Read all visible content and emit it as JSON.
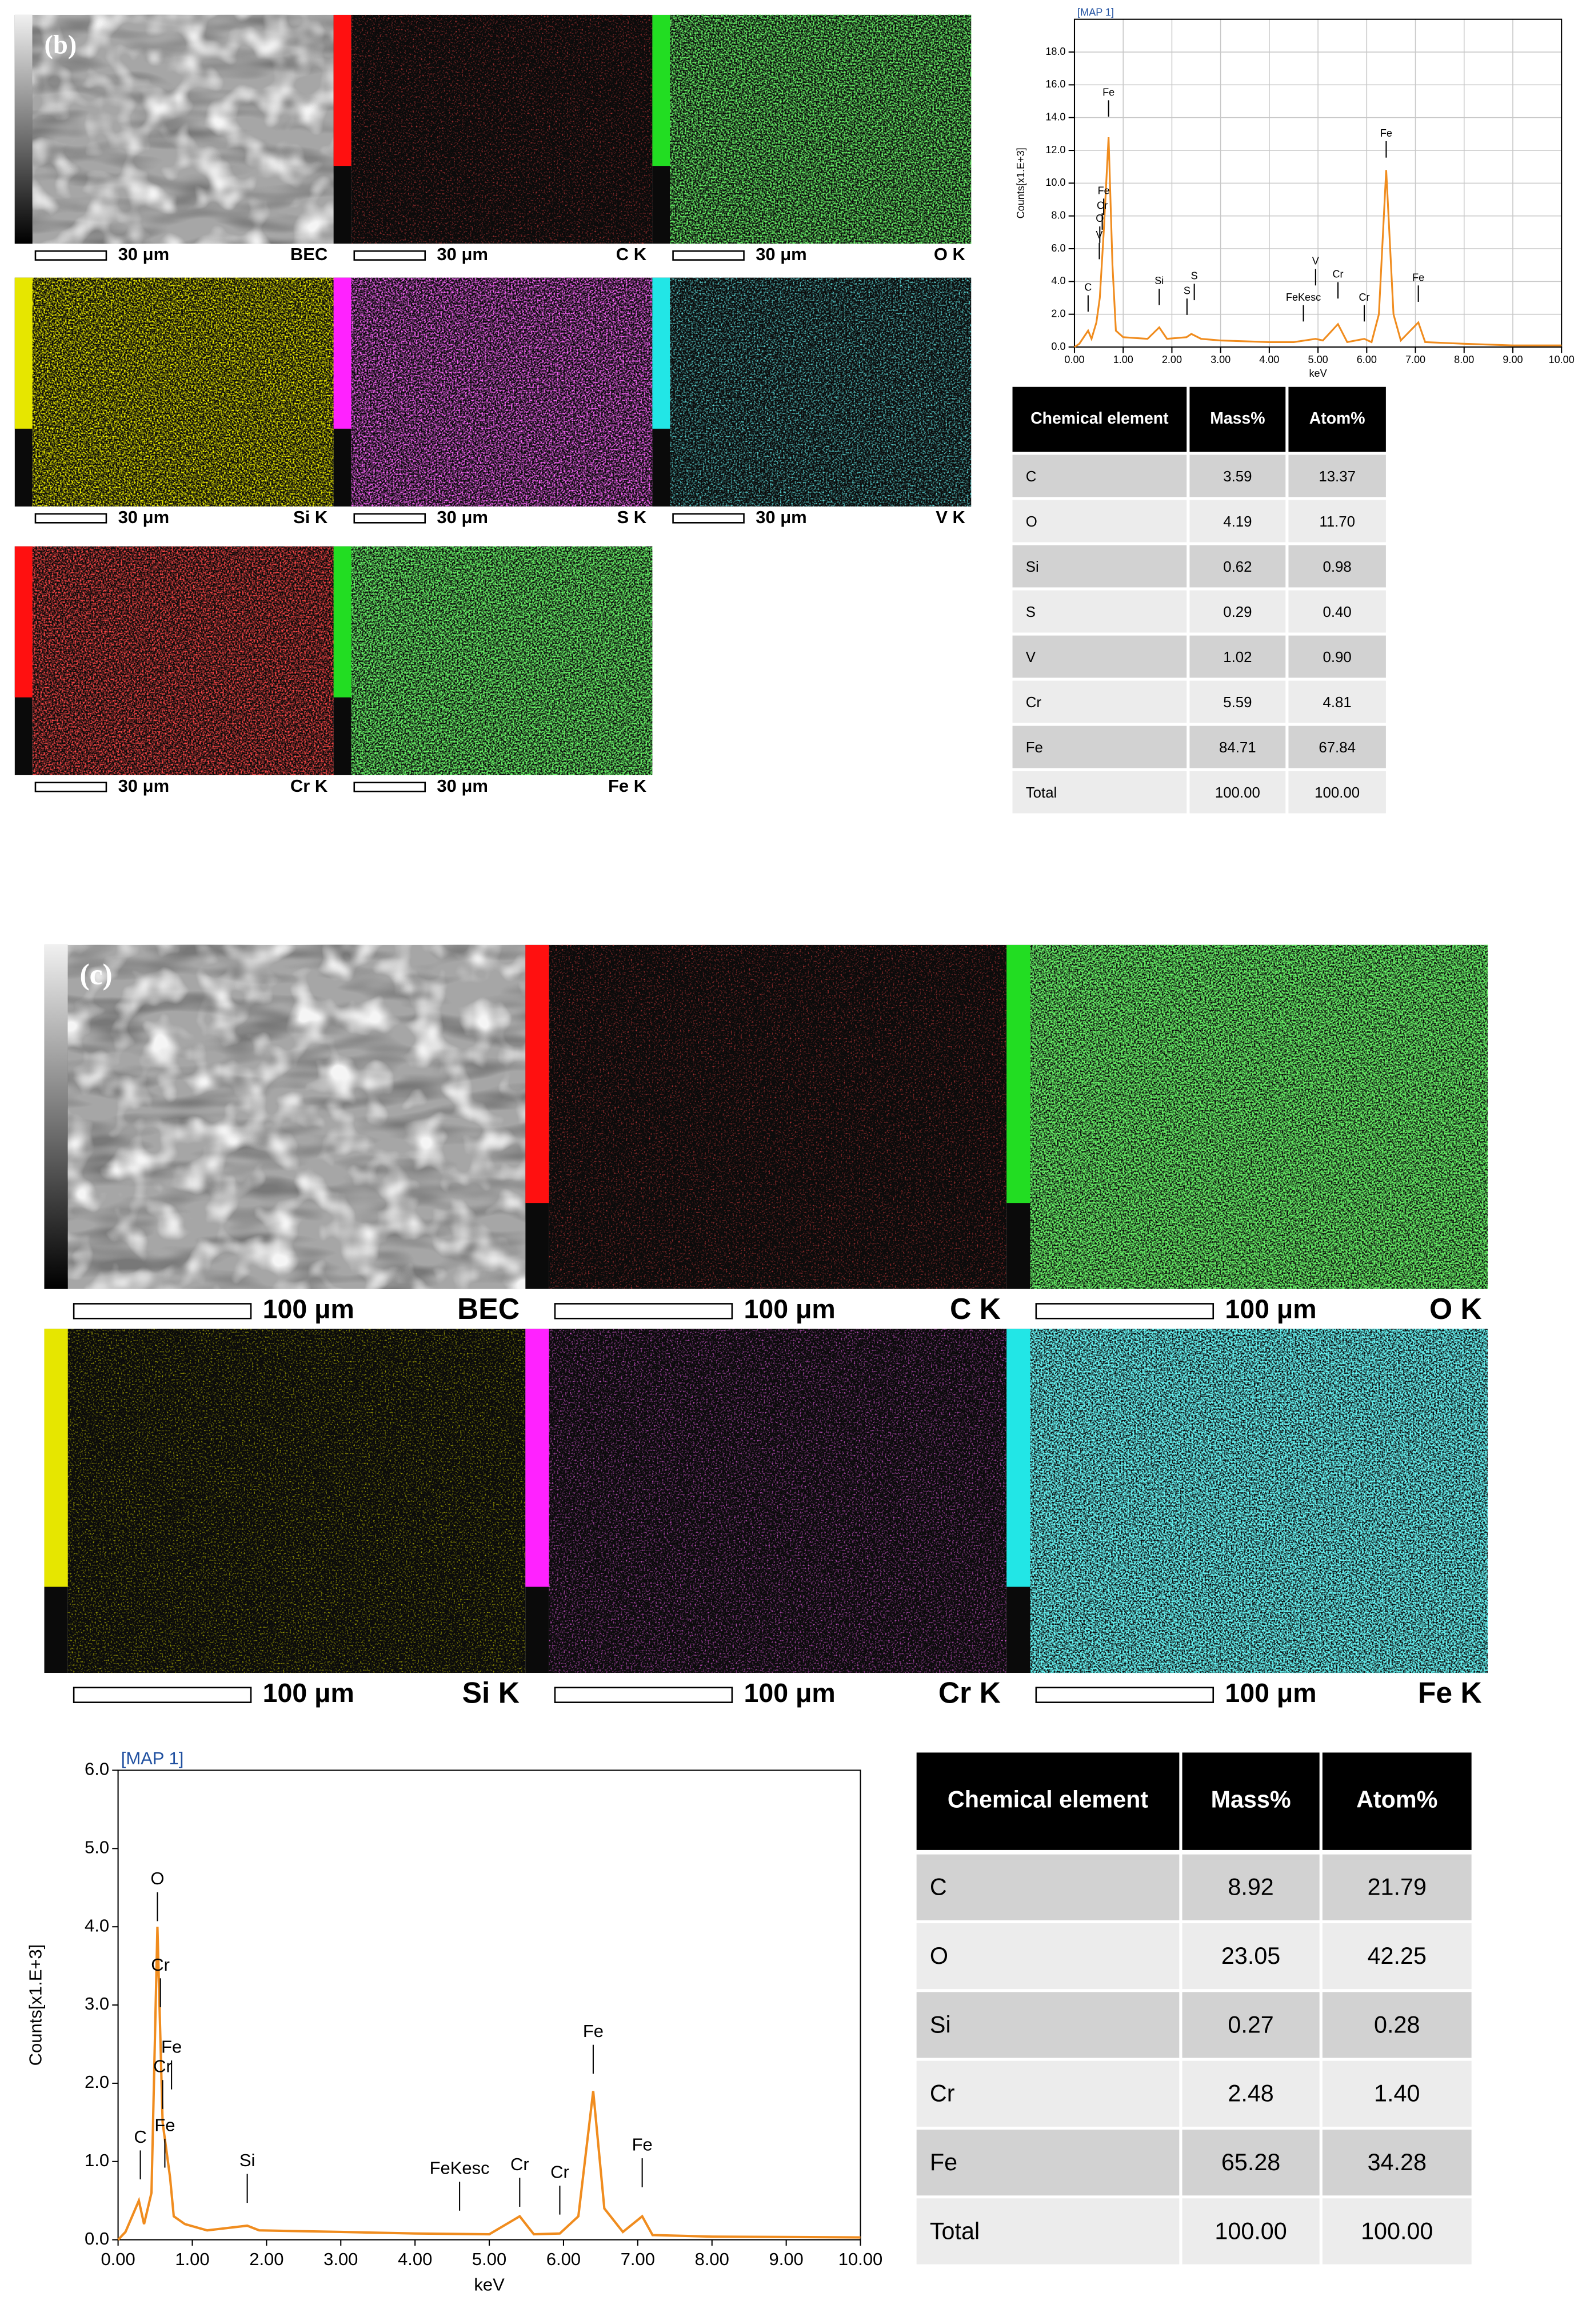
{
  "panel_b": {
    "label": "(b)",
    "maps": [
      {
        "scale": "30 μm",
        "element": "BEC",
        "color": "#8c8c8c"
      },
      {
        "scale": "30 μm",
        "element": "C K",
        "color": "#ff1010"
      },
      {
        "scale": "30 μm",
        "element": "O K",
        "color": "#22dd22"
      },
      {
        "scale": "30 μm",
        "element": "Si K",
        "color": "#e6e600"
      },
      {
        "scale": "30 μm",
        "element": "S K",
        "color": "#ff22ff"
      },
      {
        "scale": "30 μm",
        "element": "V K",
        "color": "#22e6e6"
      },
      {
        "scale": "30 μm",
        "element": "Cr K",
        "color": "#ff1010"
      },
      {
        "scale": "30 μm",
        "element": "Fe K",
        "color": "#22dd22"
      }
    ],
    "table": {
      "header": [
        "Chemical element",
        "Mass%",
        "Atom%"
      ],
      "rows": [
        [
          "C",
          "3.59",
          "13.37"
        ],
        [
          "O",
          "4.19",
          "11.70"
        ],
        [
          "Si",
          "0.62",
          "0.98"
        ],
        [
          "S",
          "0.29",
          "0.40"
        ],
        [
          "V",
          "1.02",
          "0.90"
        ],
        [
          "Cr",
          "5.59",
          "4.81"
        ],
        [
          "Fe",
          "84.71",
          "67.84"
        ],
        [
          "Total",
          "100.00",
          "100.00"
        ]
      ]
    }
  },
  "panel_c": {
    "label": "(c)",
    "maps": [
      {
        "scale": "100 μm",
        "element": "BEC",
        "color": "#8c8c8c"
      },
      {
        "scale": "100 μm",
        "element": "C K",
        "color": "#ff1010"
      },
      {
        "scale": "100 μm",
        "element": "O K",
        "color": "#22dd22"
      },
      {
        "scale": "100 μm",
        "element": "Si K",
        "color": "#e6e600"
      },
      {
        "scale": "100 μm",
        "element": "Cr K",
        "color": "#ff22ff"
      },
      {
        "scale": "100 μm",
        "element": "Fe K",
        "color": "#22e6e6"
      }
    ],
    "table": {
      "header": [
        "Chemical element",
        "Mass%",
        "Atom%"
      ],
      "rows": [
        [
          "C",
          "8.92",
          "21.79"
        ],
        [
          "O",
          "23.05",
          "42.25"
        ],
        [
          "Si",
          "0.27",
          "0.28"
        ],
        [
          "Cr",
          "2.48",
          "1.40"
        ],
        [
          "Fe",
          "65.28",
          "34.28"
        ],
        [
          "Total",
          "100.00",
          "100.00"
        ]
      ]
    }
  },
  "chart_data": [
    {
      "type": "line",
      "title": "[MAP 1]",
      "x_label": "keV",
      "y_label": "Counts[x1.E+3]",
      "x": [
        0,
        0.1,
        0.28,
        0.35,
        0.45,
        0.52,
        0.6,
        0.7,
        0.78,
        0.85,
        1,
        1.5,
        1.74,
        1.9,
        2.3,
        2.4,
        2.6,
        3,
        4,
        4.5,
        4.95,
        5.1,
        5.41,
        5.6,
        5.95,
        6.1,
        6.25,
        6.4,
        6.55,
        6.7,
        7.06,
        7.2,
        8,
        9,
        10
      ],
      "series": [
        {
          "color": "#f08c1e",
          "values": [
            0,
            0.2,
            1.0,
            0.5,
            1.5,
            3,
            7,
            12.8,
            5,
            1,
            0.6,
            0.5,
            1.2,
            0.5,
            0.6,
            0.8,
            0.5,
            0.4,
            0.3,
            0.3,
            0.5,
            0.4,
            1.4,
            0.3,
            0.5,
            0.3,
            2,
            10.8,
            2,
            0.4,
            1.5,
            0.3,
            0.2,
            0.1,
            0.1
          ]
        }
      ],
      "xlim": [
        0,
        10
      ],
      "ylim": [
        0,
        20
      ],
      "xticks": [
        {
          "value": 0,
          "label": "0.00"
        },
        {
          "value": 1,
          "label": "1.00"
        },
        {
          "value": 2,
          "label": "2.00"
        },
        {
          "value": 3,
          "label": "3.00"
        },
        {
          "value": 4,
          "label": "4.00"
        },
        {
          "value": 5,
          "label": "5.00"
        },
        {
          "value": 6,
          "label": "6.00"
        },
        {
          "value": 7,
          "label": "7.00"
        },
        {
          "value": 8,
          "label": "8.00"
        },
        {
          "value": 9,
          "label": "9.00"
        },
        {
          "value": 10,
          "label": "10.00"
        }
      ],
      "yticks": [
        {
          "value": 0,
          "label": "0.0"
        },
        {
          "value": 2,
          "label": "2.0"
        },
        {
          "value": 4,
          "label": "4.0"
        },
        {
          "value": 6,
          "label": "6.0"
        },
        {
          "value": 8,
          "label": "8.0"
        },
        {
          "value": 10,
          "label": "10.0"
        },
        {
          "value": 12,
          "label": "12.0"
        },
        {
          "value": 14,
          "label": "14.0"
        },
        {
          "value": 16,
          "label": "16.0"
        },
        {
          "value": 18,
          "label": "18.0"
        }
      ],
      "grid": true,
      "annotations": [
        {
          "text": "C",
          "x": 0.28,
          "y": 3.6
        },
        {
          "text": "V",
          "x": 0.51,
          "y": 6.8
        },
        {
          "text": "O",
          "x": 0.52,
          "y": 7.8
        },
        {
          "text": "Cr",
          "x": 0.57,
          "y": 8.6
        },
        {
          "text": "Fe",
          "x": 0.6,
          "y": 9.5
        },
        {
          "text": "Fe",
          "x": 0.7,
          "y": 15.5
        },
        {
          "text": "Si",
          "x": 1.74,
          "y": 4.0
        },
        {
          "text": "S",
          "x": 2.31,
          "y": 3.4
        },
        {
          "text": "S",
          "x": 2.46,
          "y": 4.3
        },
        {
          "text": "FeKesc",
          "x": 4.7,
          "y": 3.0
        },
        {
          "text": "V",
          "x": 4.95,
          "y": 5.2
        },
        {
          "text": "Cr",
          "x": 5.41,
          "y": 4.4
        },
        {
          "text": "Cr",
          "x": 5.95,
          "y": 3.0
        },
        {
          "text": "Fe",
          "x": 6.4,
          "y": 13.0
        },
        {
          "text": "Fe",
          "x": 7.06,
          "y": 4.2
        }
      ]
    },
    {
      "type": "line",
      "title": "[MAP 1]",
      "x_label": "keV",
      "y_label": "Counts[x1.E+3]",
      "x": [
        0,
        0.1,
        0.28,
        0.35,
        0.45,
        0.53,
        0.6,
        0.7,
        0.75,
        0.9,
        1.2,
        1.74,
        1.9,
        3,
        4,
        5,
        5.41,
        5.6,
        5.95,
        6.2,
        6.4,
        6.55,
        6.8,
        7.06,
        7.2,
        8,
        10
      ],
      "series": [
        {
          "color": "#f08c1e",
          "values": [
            0,
            0.1,
            0.5,
            0.2,
            0.6,
            4.0,
            1.5,
            0.8,
            0.3,
            0.2,
            0.12,
            0.18,
            0.12,
            0.1,
            0.08,
            0.07,
            0.3,
            0.07,
            0.08,
            0.3,
            1.9,
            0.4,
            0.1,
            0.3,
            0.06,
            0.04,
            0.03
          ]
        }
      ],
      "xlim": [
        0,
        10
      ],
      "ylim": [
        0,
        6
      ],
      "xticks": [
        {
          "value": 0,
          "label": "0.00"
        },
        {
          "value": 1,
          "label": "1.00"
        },
        {
          "value": 2,
          "label": "2.00"
        },
        {
          "value": 3,
          "label": "3.00"
        },
        {
          "value": 4,
          "label": "4.00"
        },
        {
          "value": 5,
          "label": "5.00"
        },
        {
          "value": 6,
          "label": "6.00"
        },
        {
          "value": 7,
          "label": "7.00"
        },
        {
          "value": 8,
          "label": "8.00"
        },
        {
          "value": 9,
          "label": "9.00"
        },
        {
          "value": 10,
          "label": "10.00"
        }
      ],
      "yticks": [
        {
          "value": 0,
          "label": "0.0"
        },
        {
          "value": 1,
          "label": "1.0"
        },
        {
          "value": 2,
          "label": "2.0"
        },
        {
          "value": 3,
          "label": "3.0"
        },
        {
          "value": 4,
          "label": "4.0"
        },
        {
          "value": 5,
          "label": "5.0"
        },
        {
          "value": 6,
          "label": "6.0"
        }
      ],
      "grid": false,
      "annotations": [
        {
          "text": "C",
          "x": 0.3,
          "y": 1.3
        },
        {
          "text": "Fe",
          "x": 0.63,
          "y": 1.45
        },
        {
          "text": "Cr",
          "x": 0.6,
          "y": 2.2
        },
        {
          "text": "Fe",
          "x": 0.72,
          "y": 2.45
        },
        {
          "text": "Cr",
          "x": 0.57,
          "y": 3.5
        },
        {
          "text": "O",
          "x": 0.53,
          "y": 4.6
        },
        {
          "text": "Si",
          "x": 1.74,
          "y": 1.0
        },
        {
          "text": "FeKesc",
          "x": 4.6,
          "y": 0.9
        },
        {
          "text": "Cr",
          "x": 5.41,
          "y": 0.95
        },
        {
          "text": "Cr",
          "x": 5.95,
          "y": 0.85
        },
        {
          "text": "Fe",
          "x": 6.4,
          "y": 2.65
        },
        {
          "text": "Fe",
          "x": 7.06,
          "y": 1.2
        }
      ]
    }
  ]
}
